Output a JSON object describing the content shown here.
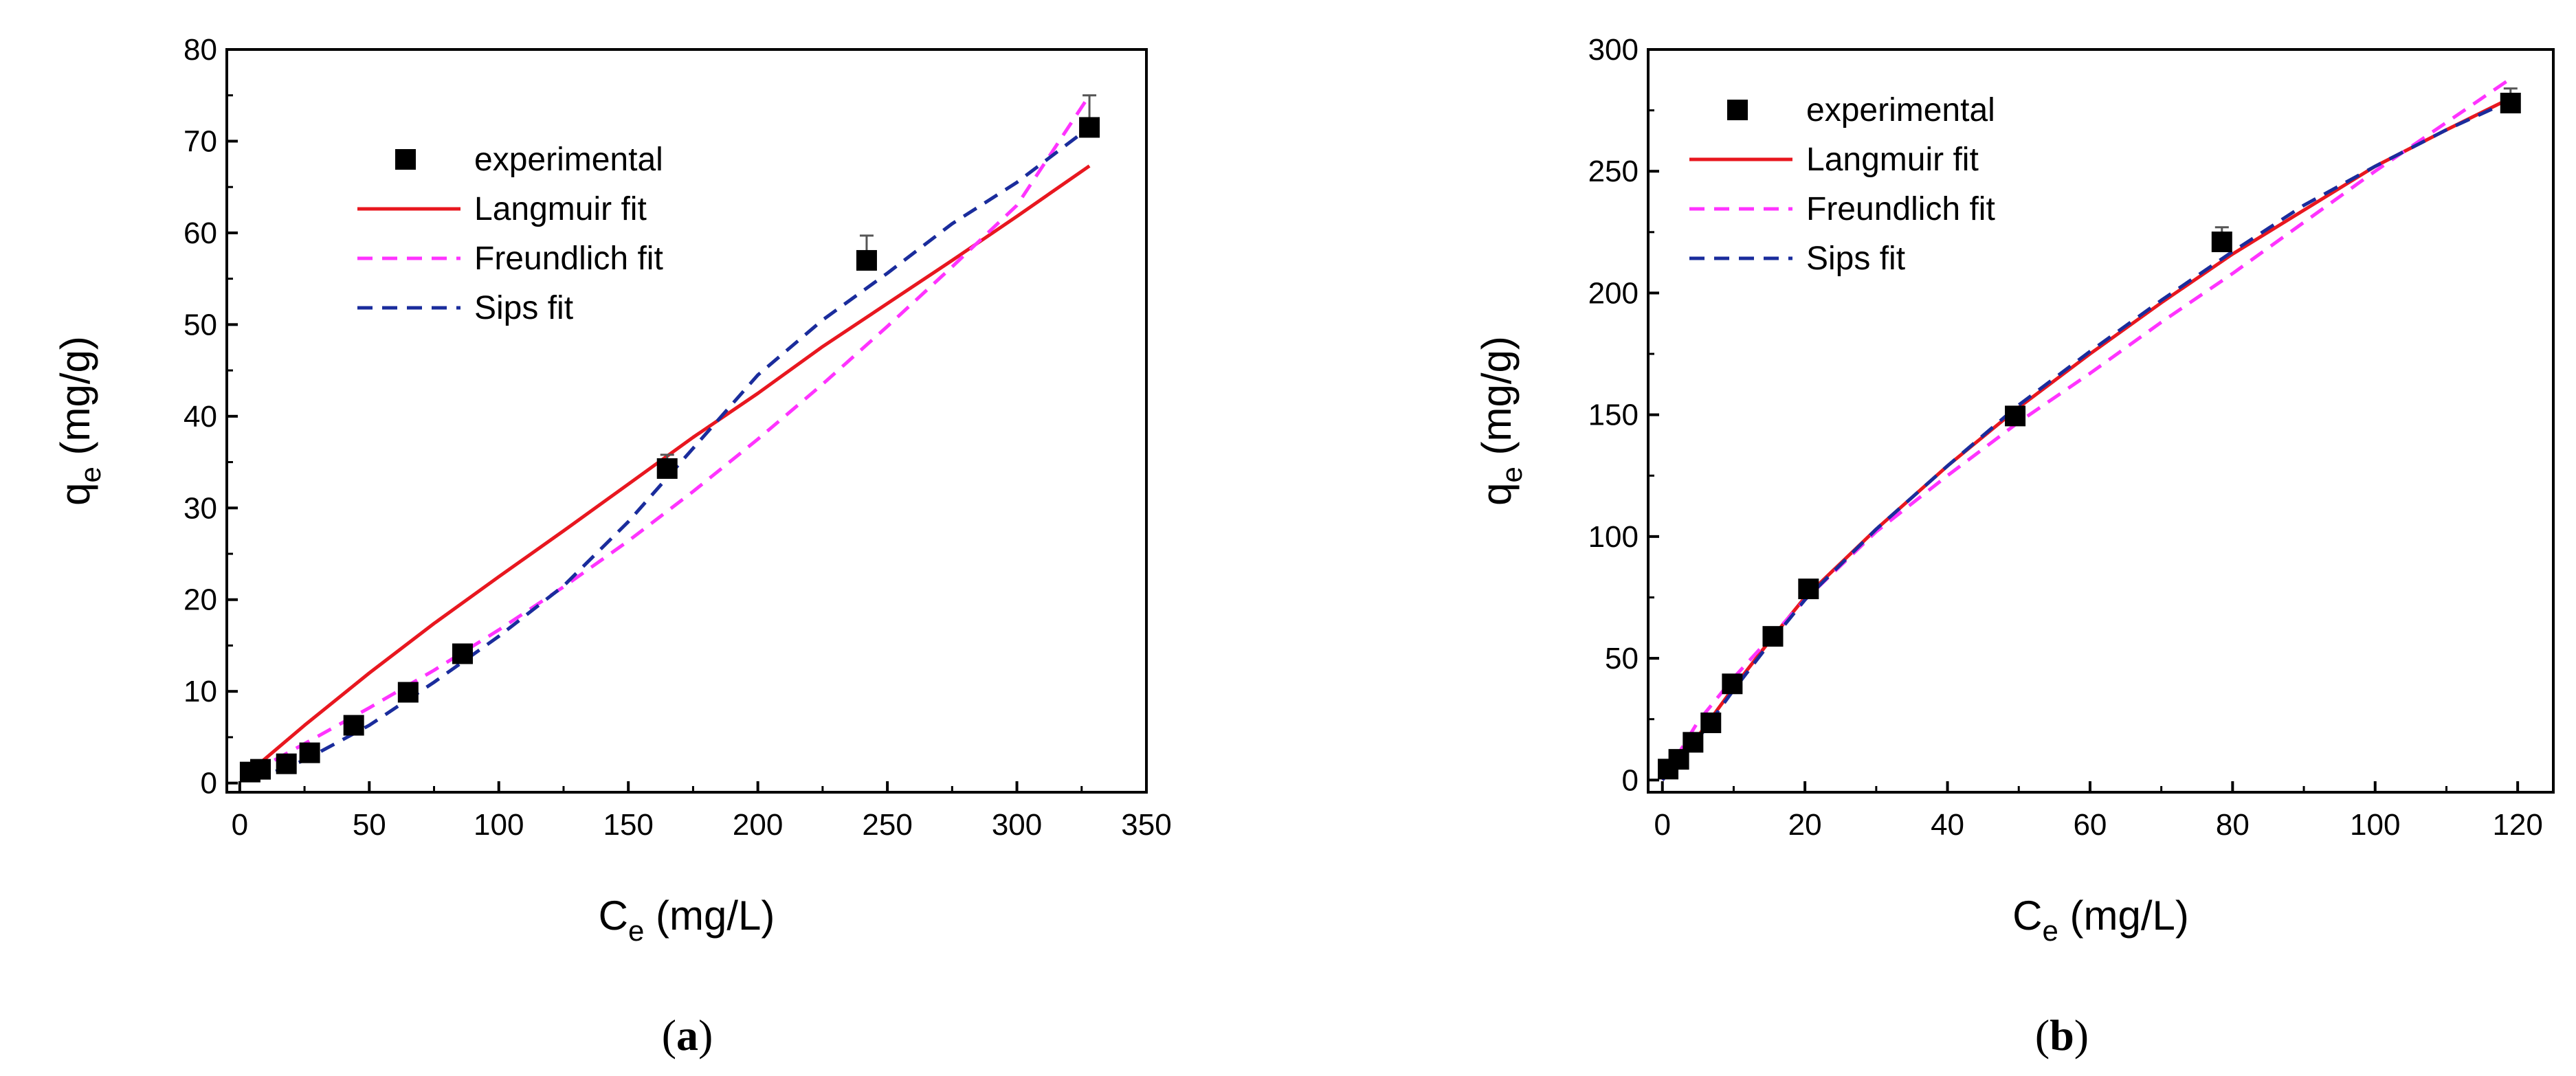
{
  "chart_data": [
    {
      "type": "scatter",
      "panel_label": "a",
      "xlabel": {
        "main": "C",
        "sub": "e",
        "unit": " (mg/L)"
      },
      "ylabel": {
        "main": "q",
        "sub": "e",
        "unit": " (mg/g)"
      },
      "xlim": [
        -5,
        350
      ],
      "ylim": [
        -1,
        80
      ],
      "xticks": [
        0,
        50,
        100,
        150,
        200,
        250,
        300,
        350
      ],
      "yticks": [
        0,
        10,
        20,
        30,
        40,
        50,
        60,
        70,
        80
      ],
      "legend_position": "upper-left",
      "legend": [
        "experimental",
        "Langmuir fit",
        "Freundlich fit",
        "Sips fit"
      ],
      "experimental": {
        "name": "experimental",
        "x": [
          4,
          8,
          18,
          27,
          44,
          65,
          86,
          165,
          242,
          328
        ],
        "y": [
          1.2,
          1.5,
          2.1,
          3.3,
          6.3,
          9.9,
          14.1,
          34.3,
          57.0,
          71.5
        ],
        "err": [
          0.3,
          0.3,
          0.4,
          0.5,
          0.6,
          0.8,
          0.8,
          1.5,
          2.7,
          3.5
        ]
      },
      "fits": [
        {
          "name": "Langmuir fit",
          "color": "#e8171f",
          "dash": "solid",
          "x": [
            5,
            25,
            50,
            75,
            100,
            125,
            150,
            175,
            200,
            225,
            250,
            275,
            300,
            328
          ],
          "y": [
            1.5,
            6.3,
            12.0,
            17.4,
            22.5,
            27.5,
            32.6,
            37.7,
            42.5,
            47.6,
            52.3,
            57.0,
            61.8,
            67.3
          ]
        },
        {
          "name": "Freundlich fit",
          "color": "#ff33ff",
          "dash": "dash",
          "x": [
            5,
            25,
            50,
            75,
            100,
            125,
            150,
            175,
            200,
            225,
            250,
            275,
            300,
            328
          ],
          "y": [
            1.2,
            4.3,
            8.2,
            12.3,
            16.7,
            21.4,
            26.4,
            31.8,
            37.5,
            43.5,
            49.8,
            56.3,
            63.0,
            75.0
          ]
        },
        {
          "name": "Sips fit",
          "color": "#1a2c9c",
          "dash": "dash",
          "x": [
            5,
            25,
            50,
            75,
            100,
            125,
            150,
            175,
            200,
            225,
            250,
            275,
            300,
            328
          ],
          "y": [
            0.3,
            2.5,
            6.3,
            11.0,
            16.0,
            21.5,
            28.5,
            36.5,
            44.5,
            50.5,
            55.6,
            61.0,
            65.5,
            71.5
          ]
        }
      ]
    },
    {
      "type": "scatter",
      "panel_label": "b",
      "xlabel": {
        "main": "C",
        "sub": "e",
        "unit": " (mg/L)"
      },
      "ylabel": {
        "main": "q",
        "sub": "e",
        "unit": " (mg/g)"
      },
      "xlim": [
        -2,
        125
      ],
      "ylim": [
        -5,
        300
      ],
      "xticks": [
        0,
        20,
        40,
        60,
        80,
        100,
        120
      ],
      "yticks": [
        0,
        50,
        100,
        150,
        200,
        250,
        300
      ],
      "legend_position": "upper-left",
      "legend": [
        "experimental",
        "Langmuir fit",
        "Freundlich fit",
        "Sips fit"
      ],
      "experimental": {
        "name": "experimental",
        "x": [
          0.8,
          2.3,
          4.3,
          6.8,
          9.8,
          15.5,
          20.5,
          49.5,
          78.5,
          119
        ],
        "y": [
          4.5,
          8.5,
          15.5,
          23.5,
          39.5,
          59.0,
          78.5,
          149.5,
          221.0,
          278.0
        ],
        "err": [
          1.0,
          1.0,
          1.5,
          1.5,
          2.0,
          2.0,
          2.0,
          3.0,
          6.0,
          6.0
        ]
      },
      "fits": [
        {
          "name": "Langmuir fit",
          "color": "#e8171f",
          "dash": "solid",
          "x": [
            0,
            5,
            10,
            15,
            20,
            30,
            40,
            50,
            60,
            70,
            80,
            90,
            100,
            110,
            119
          ],
          "y": [
            0,
            18,
            38,
            57,
            75,
            103,
            129,
            153,
            175,
            196,
            216,
            234,
            252,
            267,
            280
          ]
        },
        {
          "name": "Freundlich fit",
          "color": "#ff33ff",
          "dash": "dash",
          "x": [
            0,
            5,
            10,
            15,
            20,
            30,
            40,
            50,
            60,
            70,
            80,
            90,
            100,
            110,
            119
          ],
          "y": [
            0,
            24,
            42,
            58,
            74,
            102,
            125,
            147,
            167,
            188,
            208,
            229,
            250,
            270,
            288
          ]
        },
        {
          "name": "Sips fit",
          "color": "#1a2c9c",
          "dash": "dash",
          "x": [
            0,
            5,
            10,
            15,
            20,
            30,
            40,
            50,
            60,
            70,
            80,
            90,
            100,
            110,
            119
          ],
          "y": [
            0,
            17,
            37,
            56,
            74,
            103,
            129,
            154,
            176,
            197,
            217,
            236,
            252,
            267,
            279
          ]
        }
      ]
    }
  ]
}
